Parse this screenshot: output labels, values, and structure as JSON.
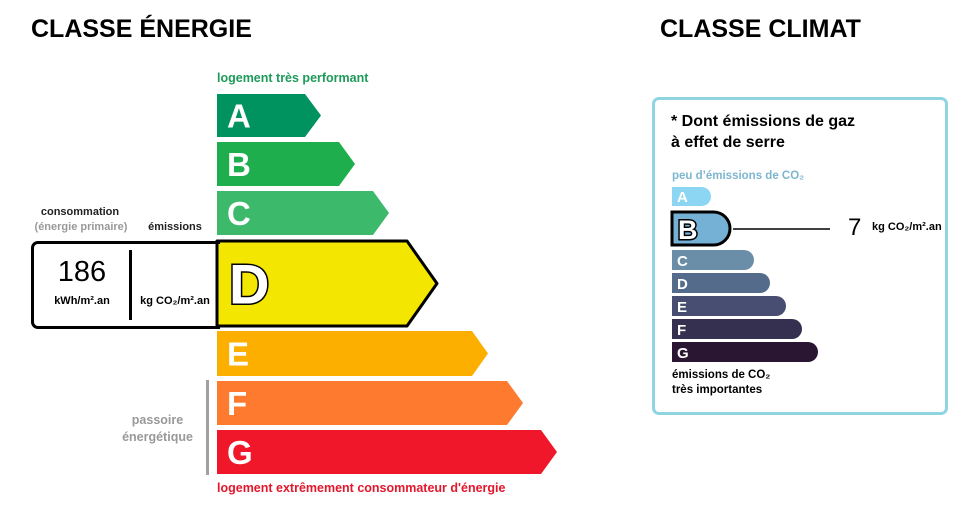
{
  "energy": {
    "title": "CLASSE ÉNERGIE",
    "top_label": "logement très performant",
    "bottom_label": "logement extrêmement consommateur d'énergie",
    "consumption_label": "consommation",
    "consumption_sublabel": "(énergie primaire)",
    "emissions_label": "émissions",
    "consumption_value": "186",
    "consumption_unit": "kWh/m².an",
    "emissions_unit": "kg CO₂/m².an",
    "passoire_label_1": "passoire",
    "passoire_label_2": "énergétique",
    "current_class": "D",
    "classes": [
      {
        "letter": "A",
        "color": "#00935f"
      },
      {
        "letter": "B",
        "color": "#1fae4d"
      },
      {
        "letter": "C",
        "color": "#3cb96b"
      },
      {
        "letter": "D",
        "color": "#f3e600"
      },
      {
        "letter": "E",
        "color": "#fdaf00"
      },
      {
        "letter": "F",
        "color": "#fd7a2f"
      },
      {
        "letter": "G",
        "color": "#ef1729"
      }
    ]
  },
  "climate": {
    "title": "CLASSE CLIMAT",
    "box_title_1": "* Dont émissions de gaz",
    "box_title_2": "à effet de serre",
    "top_label": "peu d’émissions de CO₂",
    "bottom_label_1": "émissions de CO₂",
    "bottom_label_2": "très importantes",
    "value": "7",
    "unit": "kg CO₂/m².an",
    "current_class": "B",
    "border_color": "#8fd4e3",
    "classes": [
      {
        "letter": "A",
        "color": "#8cd5f3"
      },
      {
        "letter": "B",
        "color": "#75b1d5"
      },
      {
        "letter": "C",
        "color": "#6a8ea8"
      },
      {
        "letter": "D",
        "color": "#556b8c"
      },
      {
        "letter": "E",
        "color": "#474e72"
      },
      {
        "letter": "F",
        "color": "#35304f"
      },
      {
        "letter": "G",
        "color": "#2a1632"
      }
    ]
  }
}
